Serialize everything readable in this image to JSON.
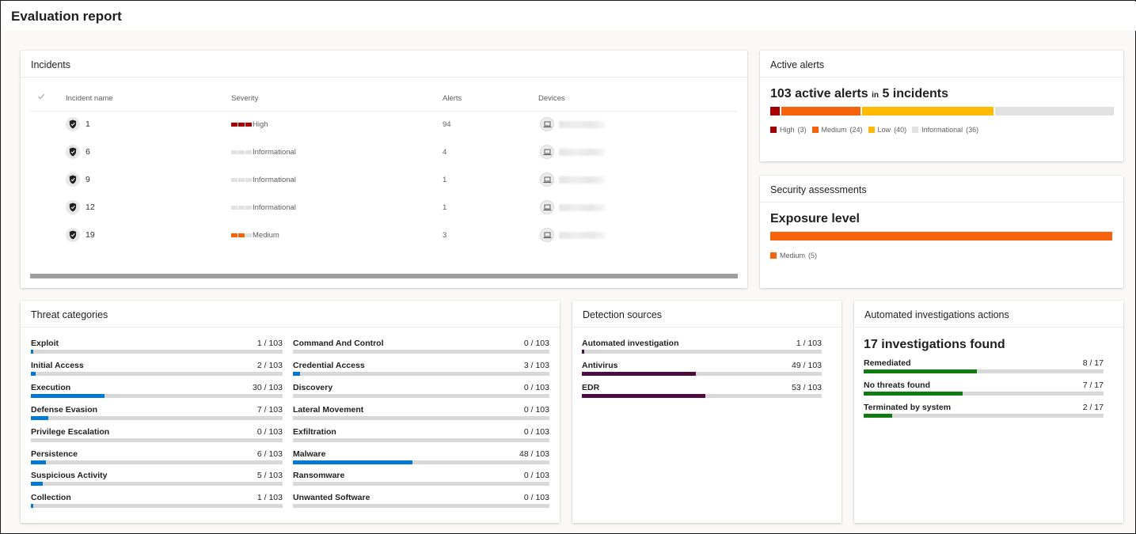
{
  "page": {
    "title": "Evaluation report"
  },
  "colors": {
    "high": "#a80000",
    "medium": "#f7630c",
    "low": "#ffb900",
    "informational": "#e1e1e1",
    "threat_bar": "#0078d4",
    "detection_bar": "#4b0c3f",
    "investigation_bar": "#107c10"
  },
  "incidents": {
    "title": "Incidents",
    "columns": {
      "name": "Incident name",
      "severity": "Severity",
      "alerts": "Alerts",
      "devices": "Devices"
    },
    "rows": [
      {
        "name": "1",
        "severity": "High",
        "level": 3,
        "color": "#a80000",
        "alerts": "94",
        "device_icon": "laptop-icon"
      },
      {
        "name": "6",
        "severity": "Informational",
        "level": 0,
        "color": "#e1e1e1",
        "alerts": "4",
        "device_icon": "laptop-icon"
      },
      {
        "name": "9",
        "severity": "Informational",
        "level": 0,
        "color": "#e1e1e1",
        "alerts": "1",
        "device_icon": "laptop-icon"
      },
      {
        "name": "12",
        "severity": "Informational",
        "level": 0,
        "color": "#e1e1e1",
        "alerts": "1",
        "device_icon": "laptop-icon"
      },
      {
        "name": "19",
        "severity": "Medium",
        "level": 2,
        "color": "#f7630c",
        "alerts": "3",
        "device_icon": "laptop-icon"
      }
    ]
  },
  "active_alerts": {
    "title": "Active alerts",
    "count": "103 active alerts",
    "in_word": "in",
    "incidents": "5 incidents",
    "segments": [
      {
        "label": "High",
        "count": "(3)",
        "value": 3,
        "color": "#a80000"
      },
      {
        "label": "Medium",
        "count": "(24)",
        "value": 24,
        "color": "#f7630c"
      },
      {
        "label": "Low",
        "count": "(40)",
        "value": 40,
        "color": "#ffb900"
      },
      {
        "label": "Informational",
        "count": "(36)",
        "value": 36,
        "color": "#e1e1e1"
      }
    ]
  },
  "security_assessments": {
    "title": "Security assessments",
    "heading": "Exposure level",
    "segments": [
      {
        "label": "Medium",
        "count": "(5)",
        "value": 5,
        "color": "#f7630c"
      }
    ]
  },
  "threat_categories": {
    "title": "Threat categories",
    "total": 103,
    "left": [
      {
        "label": "Exploit",
        "count": "1 / 103",
        "value": 1
      },
      {
        "label": "Initial Access",
        "count": "2 / 103",
        "value": 2
      },
      {
        "label": "Execution",
        "count": "30 / 103",
        "value": 30
      },
      {
        "label": "Defense Evasion",
        "count": "7 / 103",
        "value": 7
      },
      {
        "label": "Privilege Escalation",
        "count": "0 / 103",
        "value": 0
      },
      {
        "label": "Persistence",
        "count": "6 / 103",
        "value": 6
      },
      {
        "label": "Suspicious Activity",
        "count": "5 / 103",
        "value": 5
      },
      {
        "label": "Collection",
        "count": "1 / 103",
        "value": 1
      }
    ],
    "right": [
      {
        "label": "Command And Control",
        "count": "0 / 103",
        "value": 0
      },
      {
        "label": "Credential Access",
        "count": "3 / 103",
        "value": 3
      },
      {
        "label": "Discovery",
        "count": "0 / 103",
        "value": 0
      },
      {
        "label": "Lateral Movement",
        "count": "0 / 103",
        "value": 0
      },
      {
        "label": "Exfiltration",
        "count": "0 / 103",
        "value": 0
      },
      {
        "label": "Malware",
        "count": "48 / 103",
        "value": 48
      },
      {
        "label": "Ransomware",
        "count": "0 / 103",
        "value": 0
      },
      {
        "label": "Unwanted Software",
        "count": "0 / 103",
        "value": 0
      }
    ]
  },
  "detection_sources": {
    "title": "Detection sources",
    "total": 103,
    "items": [
      {
        "label": "Automated investigation",
        "count": "1 / 103",
        "value": 1
      },
      {
        "label": "Antivirus",
        "count": "49 / 103",
        "value": 49
      },
      {
        "label": "EDR",
        "count": "53 / 103",
        "value": 53
      }
    ]
  },
  "automated_investigations": {
    "title": "Automated investigations actions",
    "heading": "17 investigations found",
    "total": 17,
    "items": [
      {
        "label": "Remediated",
        "count": "8 / 17",
        "value": 8
      },
      {
        "label": "No threats found",
        "count": "7 / 17",
        "value": 7
      },
      {
        "label": "Terminated by system",
        "count": "2 / 17",
        "value": 2
      }
    ]
  }
}
